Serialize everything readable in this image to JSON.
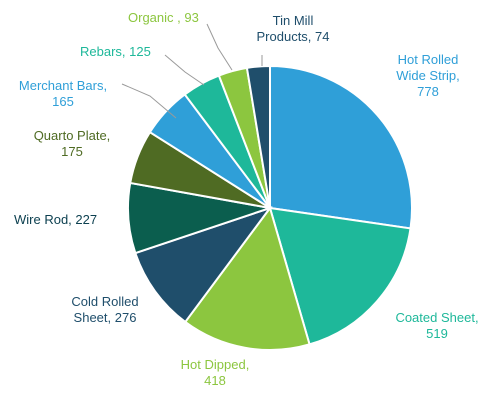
{
  "chart_data": {
    "type": "pie",
    "slices": [
      {
        "name": "Hot Rolled Wide Strip",
        "value": 778,
        "color": "#2F9FD8"
      },
      {
        "name": "Coated Sheet",
        "value": 519,
        "color": "#1EB89A"
      },
      {
        "name": "Hot Dipped",
        "value": 418,
        "color": "#8CC63F"
      },
      {
        "name": "Cold Rolled Sheet",
        "value": 276,
        "color": "#1F4E6B"
      },
      {
        "name": "Wire Rod",
        "value": 227,
        "color": "#0B5E4E"
      },
      {
        "name": "Quarto Plate",
        "value": 175,
        "color": "#4F6B23"
      },
      {
        "name": "Merchant Bars",
        "value": 165,
        "color": "#2F9FD8"
      },
      {
        "name": "Rebars",
        "value": 125,
        "color": "#1EB89A"
      },
      {
        "name": "Organic",
        "value": 93,
        "color": "#8CC63F"
      },
      {
        "name": "Tin Mill Products",
        "value": 74,
        "color": "#1F4E6B"
      }
    ],
    "labels": [
      {
        "line1": "Hot Rolled",
        "line2": "Wide Strip,",
        "line3": "778",
        "color": "#2F9FD8"
      },
      {
        "line1": "Coated Sheet,",
        "line2": "519",
        "color": "#1EB89A"
      },
      {
        "line1": "Hot Dipped,",
        "line2": "418",
        "color": "#8CC63F"
      },
      {
        "line1": "Cold Rolled",
        "line2": "Sheet, 276",
        "color": "#1F4E6B"
      },
      {
        "line1": "Wire Rod, 227",
        "color": "#0B3F4F"
      },
      {
        "line1": "Quarto Plate,",
        "line2": "175",
        "color": "#4F6B23"
      },
      {
        "line1": "Merchant Bars,",
        "line2": "165",
        "color": "#2F9FD8"
      },
      {
        "line1": "Rebars, 125",
        "color": "#1EB89A"
      },
      {
        "line1": "Organic , 93",
        "color": "#8CC63F"
      },
      {
        "line1": "Tin Mill",
        "line2": "Products, 74",
        "color": "#1F4E6B"
      }
    ]
  }
}
